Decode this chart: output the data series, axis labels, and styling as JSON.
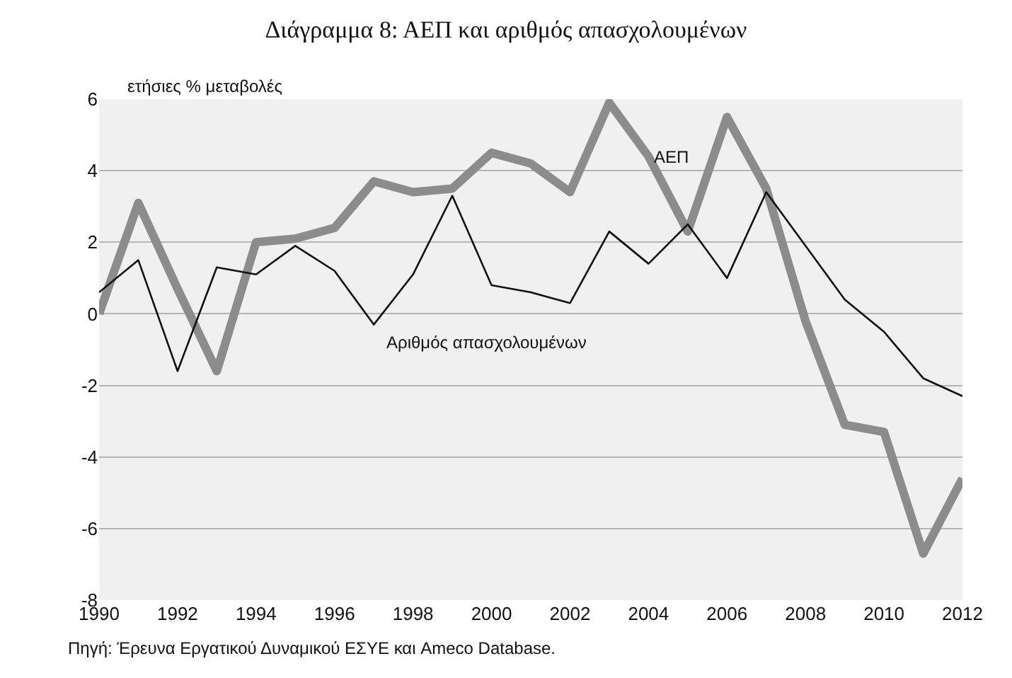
{
  "chart_data": {
    "type": "line",
    "title": "Διάγραμμα 8: ΑΕΠ και αριθμός απασχολουμένων",
    "ylabel": "ετήσιες % μεταβολές",
    "x": [
      1990,
      1991,
      1992,
      1993,
      1994,
      1995,
      1996,
      1997,
      1998,
      1999,
      2000,
      2001,
      2002,
      2003,
      2004,
      2005,
      2006,
      2007,
      2008,
      2009,
      2010,
      2011,
      2012
    ],
    "series": [
      {
        "name": "ΑΕΠ",
        "color": "#8c8c8c",
        "values": [
          0.0,
          3.1,
          0.7,
          -1.6,
          2.0,
          2.1,
          2.4,
          3.7,
          3.4,
          3.5,
          4.5,
          4.2,
          3.4,
          5.9,
          4.4,
          2.3,
          5.5,
          3.5,
          -0.2,
          -3.1,
          -3.3,
          -6.7,
          -4.6
        ]
      },
      {
        "name": "Αριθμός απασχολουμένων",
        "color": "#111111",
        "values": [
          0.6,
          1.5,
          -1.6,
          1.3,
          1.1,
          1.9,
          1.2,
          -0.3,
          1.1,
          3.3,
          0.8,
          0.6,
          0.3,
          2.3,
          1.4,
          2.5,
          1.0,
          3.4,
          1.9,
          0.4,
          -0.5,
          -1.8,
          -2.3
        ]
      }
    ],
    "xlim": [
      1990,
      2012
    ],
    "xticks": [
      1990,
      1992,
      1994,
      1996,
      1998,
      2000,
      2002,
      2004,
      2006,
      2008,
      2010,
      2012
    ],
    "ylim": [
      -8,
      6
    ],
    "yticks": [
      -8,
      -6,
      -4,
      -2,
      0,
      2,
      4,
      6
    ],
    "grid": "y",
    "legend": false,
    "marker": "none",
    "line_style": "solid",
    "annotations": [
      "Πηγή: Έρευνα Εργατικού Δυναμικού ΕΣΥΕ και Ameco Database."
    ]
  }
}
